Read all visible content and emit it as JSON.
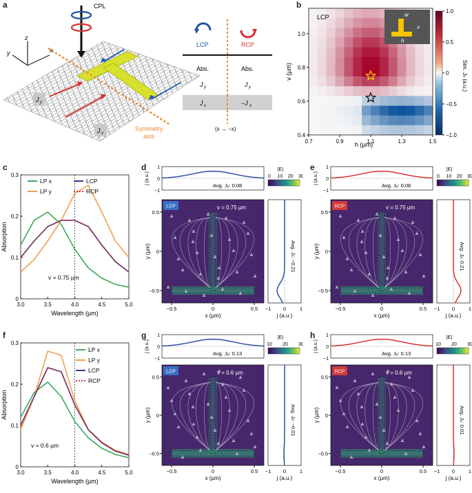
{
  "panels": {
    "a": {
      "label": "a",
      "cpl": "CPL",
      "axes": {
        "x": "x",
        "y": "y",
        "z": "z"
      },
      "jy_box": "J",
      "jy_sub": "y",
      "jx_box": "J",
      "jx_sub": "x",
      "symmetry": "Symmetry",
      "axis_word": "axis",
      "table": {
        "lcp": "LCP",
        "rcp": "RCP",
        "abs_left": "Abs.",
        "abs_right": "Abs.",
        "jy_left": "J",
        "jy_right": "J",
        "jx_left": "J",
        "jx_right": "−J",
        "sub_y": "y",
        "sub_x": "x",
        "footer": "(x → −x)"
      }
    },
    "b": {
      "label": "b",
      "tag": "LCP",
      "xlabel": "h (µm)",
      "ylabel": "v (µm)",
      "xticks": [
        "0.7",
        "0.9",
        "1.1",
        "1.3",
        "1.5"
      ],
      "yticks": [
        "0.4",
        "0.6",
        "0.8",
        "1.0"
      ],
      "cbar_ticks": [
        "1.0",
        "0.5",
        "0",
        "−0.5",
        "−1.0"
      ],
      "cbar_label": "Sim. J",
      "cbar_label_sub": "x",
      "cbar_label_unit": "(a.u.)",
      "inset": {
        "w": "w",
        "v": "v",
        "h": "h"
      },
      "colors": {
        "pos": "#a50026",
        "neg": "#08519c",
        "gold": "#f5c400"
      }
    },
    "c": {
      "label": "c",
      "xlabel": "Wavelength (µm)",
      "ylabel": "Absorption",
      "annotation": "v = 0.75 µm",
      "xticks": [
        "3.0",
        "3.5",
        "4.0",
        "4.5",
        "5.0"
      ],
      "yticks": [
        "0",
        "0.1",
        "0.2",
        "0.3"
      ],
      "legend": [
        "LP x",
        "LP y",
        "LCP",
        "RCP"
      ]
    },
    "f": {
      "label": "f",
      "xlabel": "Wavelength (µm)",
      "ylabel": "Absorption",
      "annotation": "v = 0.6 µm",
      "xticks": [
        "3.0",
        "3.5",
        "4.0",
        "4.5",
        "5.0"
      ],
      "yticks": [
        "0",
        "0.1",
        "0.2",
        "0.3"
      ],
      "legend": [
        "LP x",
        "LP y",
        "LCP",
        "RCP"
      ]
    },
    "d": {
      "label": "d",
      "tag": "LCP",
      "vtext": "v = 0.75 µm",
      "avg_jy": "Avg. J",
      "avg_jy_val": ": 0.08",
      "avg_jx": "Avg. J",
      "avg_jx_val": ": −0.21",
      "cbar": "|E|",
      "cbar_ticks": [
        "0",
        "10",
        "20",
        "30"
      ]
    },
    "e": {
      "label": "e",
      "tag": "RCP",
      "vtext": "v = 0.75 µm",
      "avg_jy": "Avg. J",
      "avg_jy_val": ": 0.08",
      "avg_jx": "Avg. J",
      "avg_jx_val": ": 0.21",
      "cbar": "|E|",
      "cbar_ticks": [
        "0",
        "10",
        "20",
        "30"
      ]
    },
    "g": {
      "label": "g",
      "tag": "LCP",
      "vtext": "v = 0.6 µm",
      "avg_jy": "Avg. J",
      "avg_jy_val": ": 0.13",
      "avg_jx": "Avg. J",
      "avg_jx_val": ": −0.01",
      "cbar": "|E|",
      "cbar_ticks": [
        "10",
        "20",
        "30"
      ]
    },
    "h": {
      "label": "h",
      "tag": "RCP",
      "vtext": "v = 0.6 µm",
      "avg_jy": "Avg. J",
      "avg_jy_val": ": 0.13",
      "avg_jx": "Avg. J",
      "avg_jx_val": ": 0.01",
      "cbar": "|E|",
      "cbar_ticks": [
        "10",
        "20",
        "30"
      ]
    },
    "field_axes": {
      "x_label": "x (µm)",
      "y_label": "y (µm)",
      "j_label": "j (a.u.)",
      "x_ticks": [
        "−0.5",
        "0",
        "0.5"
      ],
      "y_ticks": [
        "0.5",
        "0",
        "−0.5"
      ],
      "top_y_ticks": [
        "1",
        "0",
        "−1"
      ],
      "side_x_ticks": [
        "−1",
        "0",
        "1"
      ]
    }
  },
  "chart_data": [
    {
      "id": "c",
      "type": "line",
      "x": [
        3.0,
        3.25,
        3.5,
        3.75,
        4.0,
        4.25,
        4.5,
        4.75,
        5.0
      ],
      "xlabel": "Wavelength (µm)",
      "ylabel": "Absorption",
      "xlim": [
        3.0,
        5.0
      ],
      "ylim": [
        0,
        0.3
      ],
      "series": [
        {
          "name": "LP x",
          "color": "#3aaa5c",
          "values": [
            0.13,
            0.19,
            0.21,
            0.18,
            0.12,
            0.075,
            0.05,
            0.035,
            0.028
          ]
        },
        {
          "name": "LP y",
          "color": "#f0a050",
          "values": [
            0.065,
            0.095,
            0.14,
            0.19,
            0.255,
            0.275,
            0.21,
            0.14,
            0.1
          ]
        },
        {
          "name": "LCP",
          "color": "#2b3f8f",
          "values": [
            0.1,
            0.14,
            0.175,
            0.19,
            0.19,
            0.175,
            0.13,
            0.09,
            0.065
          ]
        },
        {
          "name": "RCP",
          "color": "#e03030",
          "values": [
            0.1,
            0.14,
            0.175,
            0.19,
            0.19,
            0.175,
            0.13,
            0.09,
            0.065
          ]
        }
      ]
    },
    {
      "id": "f",
      "type": "line",
      "x": [
        3.0,
        3.25,
        3.5,
        3.75,
        4.0,
        4.25,
        4.5,
        4.75,
        5.0
      ],
      "xlabel": "Wavelength (µm)",
      "ylabel": "Absorption",
      "xlim": [
        3.0,
        5.0
      ],
      "ylim": [
        0,
        0.3
      ],
      "series": [
        {
          "name": "LP x",
          "color": "#3aaa5c",
          "values": [
            0.12,
            0.18,
            0.205,
            0.17,
            0.11,
            0.07,
            0.045,
            0.03,
            0.022
          ]
        },
        {
          "name": "LP y",
          "color": "#f0a050",
          "values": [
            0.09,
            0.17,
            0.28,
            0.27,
            0.16,
            0.09,
            0.06,
            0.04,
            0.03
          ]
        },
        {
          "name": "LCP",
          "color": "#2b3f8f",
          "values": [
            0.1,
            0.17,
            0.24,
            0.23,
            0.15,
            0.09,
            0.058,
            0.038,
            0.028
          ]
        },
        {
          "name": "RCP",
          "color": "#e03030",
          "values": [
            0.1,
            0.17,
            0.24,
            0.23,
            0.15,
            0.09,
            0.058,
            0.038,
            0.028
          ]
        }
      ]
    },
    {
      "id": "b",
      "type": "heatmap",
      "xlabel": "h (µm)",
      "ylabel": "v (µm)",
      "xlim": [
        0.7,
        1.5
      ],
      "ylim": [
        0.4,
        1.15
      ],
      "zlim": [
        -1.0,
        1.0
      ],
      "markers": [
        {
          "h": 1.1,
          "v": 0.75,
          "style": "gold-star"
        },
        {
          "h": 1.1,
          "v": 0.62,
          "style": "open-star"
        }
      ]
    }
  ]
}
